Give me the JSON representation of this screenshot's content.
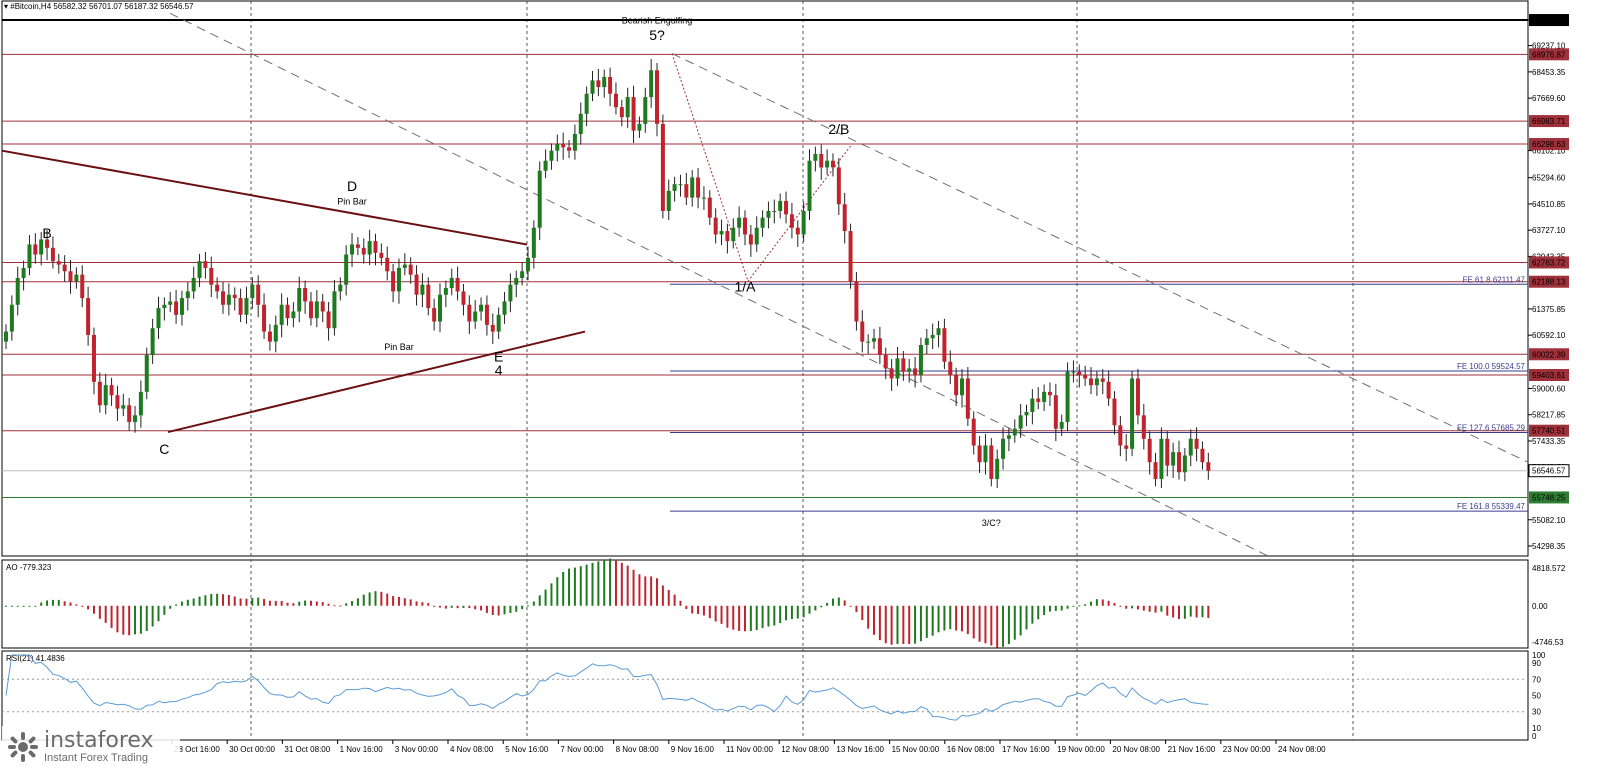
{
  "window": {
    "symbol_header": "#Bitcoin,H4  56582.32 56701.07 56187.32 56546.57"
  },
  "price_axis": {
    "ticks": [
      "70000.00",
      "69237.10",
      "68453.35",
      "67669.60",
      "66102.10",
      "65294.60",
      "64510.85",
      "63727.10",
      "62943.35",
      "61375.85",
      "60592.10",
      "59000.60",
      "58217.85",
      "57433.35",
      "56649.60",
      "55082.10",
      "54298.35"
    ],
    "ymin": 54000,
    "ymax": 70300
  },
  "price_levels": [
    {
      "value": 70000.0,
      "label": "70000.00",
      "color": "#000000",
      "style": "thick"
    },
    {
      "value": 68976.87,
      "label": "68976.87",
      "color": "#a0303a",
      "style": "red"
    },
    {
      "value": 66983.71,
      "label": "66983.71",
      "color": "#a0303a",
      "style": "red"
    },
    {
      "value": 66298.63,
      "label": "66298.63",
      "color": "#a0303a",
      "style": "red"
    },
    {
      "value": 62763.72,
      "label": "62763.72",
      "color": "#a0303a",
      "style": "red"
    },
    {
      "value": 62188.13,
      "label": "62188.13",
      "color": "#a0303a",
      "style": "red"
    },
    {
      "value": 60022.39,
      "label": "60022.39",
      "color": "#a0303a",
      "style": "red"
    },
    {
      "value": 59403.61,
      "label": "59403.61",
      "color": "#a0303a",
      "style": "red"
    },
    {
      "value": 57740.51,
      "label": "57740.51",
      "color": "#a0303a",
      "style": "red"
    },
    {
      "value": 56546.57,
      "label": "56546.57",
      "color": "#ffffff",
      "style": "current"
    },
    {
      "value": 55748.25,
      "label": "55748.25",
      "color": "#2e7d32",
      "style": "green"
    }
  ],
  "fib_levels": [
    {
      "value": 62111.47,
      "label": "FE 61.8 62111.47"
    },
    {
      "value": 59524.57,
      "label": "FE 100.0 59524.57"
    },
    {
      "value": 57685.29,
      "label": "FE 127.6 57685.29"
    },
    {
      "value": 55339.47,
      "label": "FE 161.8 55339.47"
    }
  ],
  "time_axis": {
    "labels": [
      "28 Oct 16:00",
      "30 Oct 00:00",
      "31 Oct 08:00",
      "1 Nov 16:00",
      "3 Nov 00:00",
      "4 Nov 08:00",
      "5 Nov 16:00",
      "7 Nov 00:00",
      "8 Nov 08:00",
      "9 Nov 16:00",
      "11 Nov 00:00",
      "12 Nov 08:00",
      "13 Nov 16:00",
      "15 Nov 00:00",
      "16 Nov 08:00",
      "17 Nov 16:00",
      "19 Nov 00:00",
      "20 Nov 08:00",
      "21 Nov 16:00",
      "23 Nov 00:00",
      "24 Nov 08:00"
    ]
  },
  "annotations": [
    {
      "text": "B",
      "bar": 7,
      "price": 63500
    },
    {
      "text": "D",
      "bar": 59,
      "price": 64900
    },
    {
      "text": "Pin Bar",
      "bar": 59,
      "price": 64500
    },
    {
      "text": "Pin Bar",
      "bar": 67,
      "price": 60150
    },
    {
      "text": "E",
      "bar": 84,
      "price": 59800
    },
    {
      "text": "4",
      "bar": 84,
      "price": 59400
    },
    {
      "text": "C",
      "bar": 27,
      "price": 57050
    },
    {
      "text": "Bearish Engulfing",
      "bar": 111,
      "price": 69900
    },
    {
      "text": "5?",
      "bar": 111,
      "price": 69400
    },
    {
      "text": "1/A",
      "bar": 126,
      "price": 61900
    },
    {
      "text": "2/B",
      "bar": 142,
      "price": 66600
    },
    {
      "text": "3/C?",
      "bar": 168,
      "price": 54900
    }
  ],
  "indicators": {
    "ao": {
      "label": "AO -779.323",
      "ticks": [
        "4818.572",
        "0.00",
        "-4746.53"
      ]
    },
    "rsi": {
      "label": "RSI(21) 41.4836",
      "ticks": [
        "100",
        "90",
        "70",
        "50",
        "30",
        "10",
        "0"
      ]
    }
  },
  "colors": {
    "up": "#1e7a1e",
    "down": "#c0232e",
    "rsi_line": "#5b9bd5",
    "grid": "#555555"
  },
  "chart_data": {
    "type": "candlestick",
    "title": "#Bitcoin,H4",
    "last": {
      "open": 56582.32,
      "high": 56701.07,
      "low": 56187.32,
      "close": 56546.57
    },
    "closes": [
      60700,
      61500,
      62300,
      62600,
      63300,
      63000,
      63450,
      63200,
      62800,
      62700,
      62500,
      62200,
      62400,
      61700,
      60600,
      59200,
      58500,
      59100,
      58800,
      58400,
      58500,
      58000,
      58200,
      58900,
      60000,
      60800,
      61400,
      61500,
      61600,
      61200,
      61700,
      61900,
      62300,
      62800,
      62600,
      62100,
      61900,
      61500,
      61800,
      61700,
      61200,
      61700,
      62100,
      61500,
      60700,
      60400,
      60900,
      61500,
      61100,
      61300,
      62000,
      61600,
      61100,
      61600,
      61300,
      60800,
      61900,
      62100,
      63000,
      63300,
      63200,
      63000,
      63400,
      63050,
      62900,
      62500,
      61900,
      62600,
      62700,
      62400,
      61800,
      62100,
      61400,
      61000,
      61800,
      62000,
      62300,
      61900,
      61500,
      61000,
      61300,
      61500,
      60900,
      60700,
      61200,
      61600,
      62100,
      62300,
      62500,
      62900,
      63800,
      65500,
      65800,
      66100,
      66300,
      66200,
      66100,
      66600,
      67200,
      67800,
      68200,
      68000,
      68300,
      67800,
      67400,
      67100,
      67700,
      66700,
      66900,
      67700,
      68500,
      66900,
      64300,
      64900,
      65100,
      65100,
      64700,
      65300,
      64700,
      64700,
      64100,
      63600,
      63700,
      63400,
      63800,
      64100,
      63600,
      63300,
      63800,
      64100,
      64300,
      64300,
      64600,
      64200,
      63800,
      63600,
      64300,
      65800,
      66000,
      65600,
      65800,
      65600,
      64500,
      63700,
      62200,
      61000,
      60400,
      60400,
      60500,
      60000,
      59600,
      59300,
      59900,
      59500,
      59600,
      59400,
      60300,
      60500,
      60600,
      60800,
      59800,
      59400,
      58800,
      59300,
      58100,
      57300,
      56800,
      57300,
      56300,
      56900,
      57500,
      57600,
      57800,
      58200,
      58300,
      58700,
      58600,
      58900,
      58800,
      57800,
      58000,
      59500,
      59500,
      59400,
      59300,
      59100,
      59300,
      59200,
      58700,
      57900,
      57300,
      57200,
      59300,
      58200,
      57500,
      56800,
      56300,
      57500,
      56700,
      57100,
      56500,
      57000,
      57500,
      57200,
      56800,
      56547
    ]
  }
}
